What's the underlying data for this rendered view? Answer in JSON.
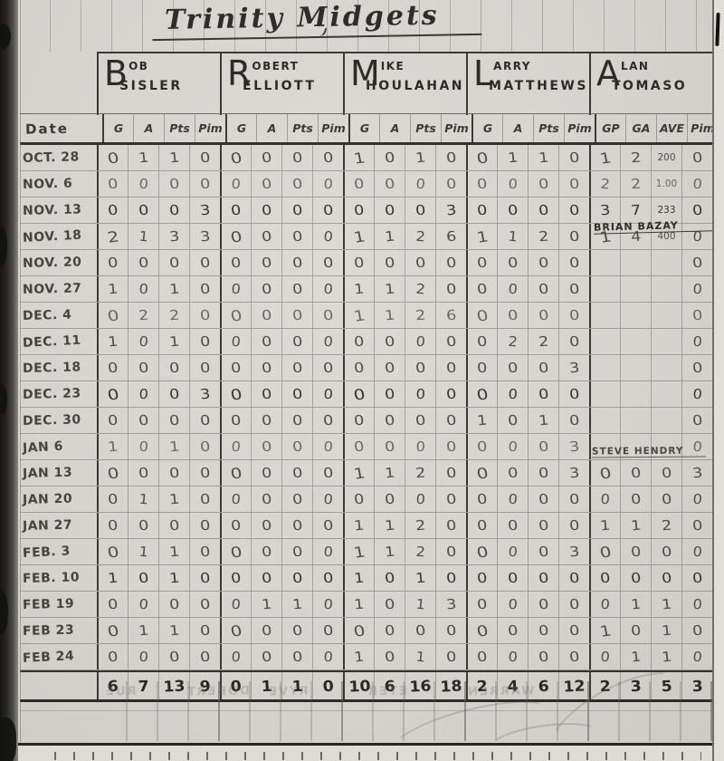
{
  "page": {
    "title": "Trinity Midgets",
    "corner_mark": "1",
    "colors": {
      "paper": "#d8d6d1",
      "ink": "#2f2e2a",
      "pencil": "#6b6962",
      "grid_line": "#8f8c85",
      "heavy_line": "#3b3a35"
    }
  },
  "table": {
    "date_header": "Date",
    "players": [
      {
        "initial": "B",
        "rest": "OB",
        "surname": "SISLER",
        "cols": [
          "G",
          "A",
          "Pts",
          "Pim"
        ]
      },
      {
        "initial": "R",
        "rest": "OBERT",
        "surname": "ELLIOTT",
        "cols": [
          "G",
          "A",
          "Pts",
          "Pim"
        ]
      },
      {
        "initial": "M",
        "rest": "IKE",
        "surname": "HOULAHAN",
        "cols": [
          "G",
          "A",
          "Pts",
          "Pim"
        ]
      },
      {
        "initial": "L",
        "rest": "ARRY",
        "surname": "MATTHEWS",
        "cols": [
          "G",
          "A",
          "Pts",
          "Pim"
        ]
      },
      {
        "initial": "A",
        "rest": "LAN",
        "surname": "TOMASO",
        "cols": [
          "GP",
          "GA",
          "AVE",
          "Pim"
        ]
      }
    ],
    "annotations": {
      "goalie_change_1": "Brian Bazay",
      "goalie_change_2": "Steve Hendry"
    },
    "rows": [
      {
        "date": "Oct. 28",
        "cells": [
          "0",
          "1",
          "1",
          "0",
          "0",
          "0",
          "0",
          "0",
          "1",
          "0",
          "1",
          "0",
          "0",
          "1",
          "1",
          "0",
          "1",
          "2",
          "200",
          "0"
        ]
      },
      {
        "date": "Nov. 6",
        "cells": [
          "0",
          "0",
          "0",
          "0",
          "0",
          "0",
          "0",
          "0",
          "0",
          "0",
          "0",
          "0",
          "0",
          "0",
          "0",
          "0",
          "2",
          "2",
          "1.00",
          "0"
        ]
      },
      {
        "date": "Nov. 13",
        "cells": [
          "0",
          "0",
          "0",
          "3",
          "0",
          "0",
          "0",
          "0",
          "0",
          "0",
          "0",
          "3",
          "0",
          "0",
          "0",
          "0",
          "3",
          "7",
          "233",
          "0"
        ]
      },
      {
        "date": "Nov. 18",
        "cells": [
          "2",
          "1",
          "3",
          "3",
          "0",
          "0",
          "0",
          "0",
          "1",
          "1",
          "2",
          "6",
          "1",
          "1",
          "2",
          "0",
          "1",
          "4",
          "400",
          "0"
        ]
      },
      {
        "date": "Nov. 20",
        "cells": [
          "0",
          "0",
          "0",
          "0",
          "0",
          "0",
          "0",
          "0",
          "0",
          "0",
          "0",
          "0",
          "0",
          "0",
          "0",
          "0",
          "",
          "",
          "",
          "0"
        ]
      },
      {
        "date": "Nov. 27",
        "cells": [
          "1",
          "0",
          "1",
          "0",
          "0",
          "0",
          "0",
          "0",
          "1",
          "1",
          "2",
          "0",
          "0",
          "0",
          "0",
          "0",
          "",
          "",
          "",
          "0"
        ]
      },
      {
        "date": "Dec. 4",
        "cells": [
          "0",
          "2",
          "2",
          "0",
          "0",
          "0",
          "0",
          "0",
          "1",
          "1",
          "2",
          "6",
          "0",
          "0",
          "0",
          "0",
          "",
          "",
          "",
          "0"
        ]
      },
      {
        "date": "Dec. 11",
        "cells": [
          "1",
          "0",
          "1",
          "0",
          "0",
          "0",
          "0",
          "0",
          "0",
          "0",
          "0",
          "0",
          "0",
          "2",
          "2",
          "0",
          "",
          "",
          "",
          "0"
        ]
      },
      {
        "date": "Dec. 18",
        "cells": [
          "0",
          "0",
          "0",
          "0",
          "0",
          "0",
          "0",
          "0",
          "0",
          "0",
          "0",
          "0",
          "0",
          "0",
          "0",
          "3",
          "",
          "",
          "",
          "0"
        ]
      },
      {
        "date": "Dec. 23",
        "cells": [
          "0",
          "0",
          "0",
          "3",
          "0",
          "0",
          "0",
          "0",
          "0",
          "0",
          "0",
          "0",
          "0",
          "0",
          "0",
          "0",
          "",
          "",
          "",
          "0"
        ]
      },
      {
        "date": "Dec. 30",
        "cells": [
          "0",
          "0",
          "0",
          "0",
          "0",
          "0",
          "0",
          "0",
          "0",
          "0",
          "0",
          "0",
          "1",
          "0",
          "1",
          "0",
          "",
          "",
          "",
          "0"
        ]
      },
      {
        "date": "Jan 6",
        "cells": [
          "1",
          "0",
          "1",
          "0",
          "0",
          "0",
          "0",
          "0",
          "0",
          "0",
          "0",
          "0",
          "0",
          "0",
          "0",
          "3",
          "",
          "",
          "",
          "0"
        ]
      },
      {
        "date": "Jan 13",
        "cells": [
          "0",
          "0",
          "0",
          "0",
          "0",
          "0",
          "0",
          "0",
          "1",
          "1",
          "2",
          "0",
          "0",
          "0",
          "0",
          "3",
          "0",
          "0",
          "0",
          "3"
        ]
      },
      {
        "date": "Jan 20",
        "cells": [
          "0",
          "1",
          "1",
          "0",
          "0",
          "0",
          "0",
          "0",
          "0",
          "0",
          "0",
          "0",
          "0",
          "0",
          "0",
          "0",
          "0",
          "0",
          "0",
          "0"
        ]
      },
      {
        "date": "Jan 27",
        "cells": [
          "0",
          "0",
          "0",
          "0",
          "0",
          "0",
          "0",
          "0",
          "1",
          "1",
          "2",
          "0",
          "0",
          "0",
          "0",
          "0",
          "1",
          "1",
          "2",
          "0"
        ]
      },
      {
        "date": "Feb. 3",
        "cells": [
          "0",
          "1",
          "1",
          "0",
          "0",
          "0",
          "0",
          "0",
          "1",
          "1",
          "2",
          "0",
          "0",
          "0",
          "0",
          "3",
          "0",
          "0",
          "0",
          "0"
        ]
      },
      {
        "date": "Feb. 10",
        "cells": [
          "1",
          "0",
          "1",
          "0",
          "0",
          "0",
          "0",
          "0",
          "1",
          "0",
          "1",
          "0",
          "0",
          "0",
          "0",
          "0",
          "0",
          "0",
          "0",
          "0"
        ]
      },
      {
        "date": "Feb 19",
        "cells": [
          "0",
          "0",
          "0",
          "0",
          "0",
          "1",
          "1",
          "0",
          "1",
          "0",
          "1",
          "3",
          "0",
          "0",
          "0",
          "0",
          "0",
          "1",
          "1",
          "0"
        ]
      },
      {
        "date": "Feb 23",
        "cells": [
          "0",
          "1",
          "1",
          "0",
          "0",
          "0",
          "0",
          "0",
          "0",
          "0",
          "0",
          "0",
          "0",
          "0",
          "0",
          "0",
          "1",
          "0",
          "1",
          "0"
        ]
      },
      {
        "date": "Feb 24",
        "cells": [
          "0",
          "0",
          "0",
          "0",
          "0",
          "0",
          "0",
          "0",
          "1",
          "0",
          "1",
          "0",
          "0",
          "0",
          "0",
          "0",
          "0",
          "1",
          "1",
          "0"
        ]
      }
    ],
    "totals": [
      "6",
      "7",
      "13",
      "9",
      "0",
      "1",
      "1",
      "0",
      "10",
      "6",
      "16",
      "18",
      "2",
      "4",
      "6",
      "12",
      "2",
      "3",
      "5",
      "3"
    ]
  },
  "ghost_words": [
    "RUE",
    "DOBERT",
    "RYVE",
    "ETER",
    "WARREN"
  ]
}
